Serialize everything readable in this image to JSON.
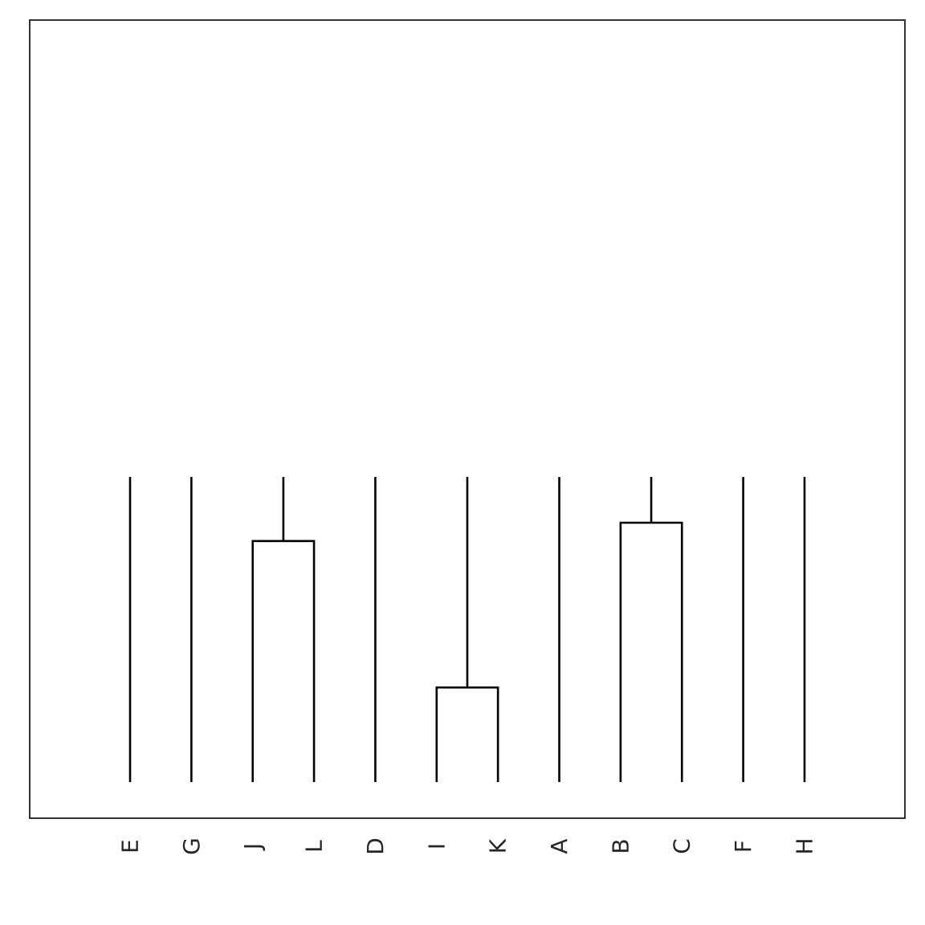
{
  "chart_data": {
    "type": "dendrogram",
    "title": "",
    "xlabel": "",
    "ylabel": "",
    "leaves": [
      "E",
      "G",
      "J",
      "L",
      "D",
      "I",
      "K",
      "A",
      "B",
      "C",
      "F",
      "H"
    ],
    "ylim": [
      0,
      1
    ],
    "top_height": 1.0,
    "merges": [
      {
        "left": "J",
        "right": "L",
        "height": 0.79
      },
      {
        "left": "I",
        "right": "K",
        "height": 0.31
      },
      {
        "left": "B",
        "right": "C",
        "height": 0.85
      }
    ],
    "grid": false,
    "legend": false
  }
}
